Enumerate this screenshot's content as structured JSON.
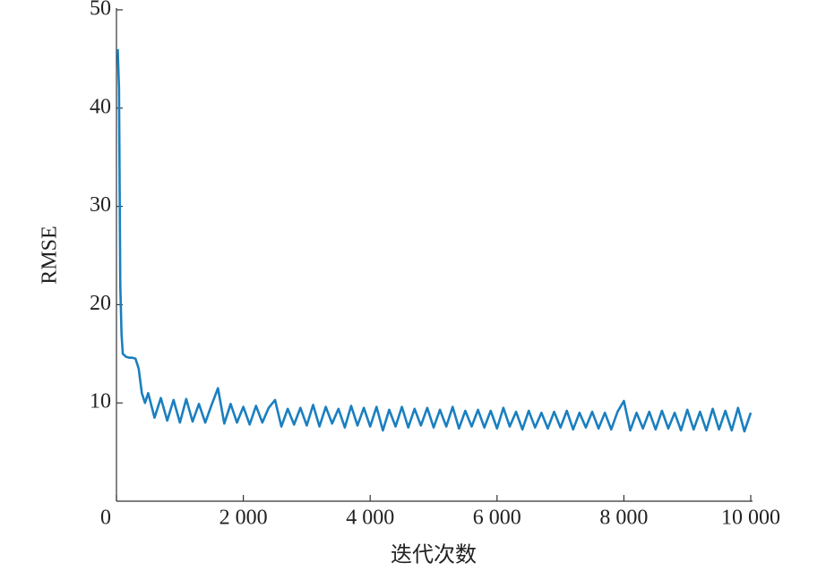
{
  "chart_data": {
    "type": "line",
    "xlabel": "迭代次数",
    "ylabel": "RMSE",
    "color": "#1a7fbf",
    "xlim": [
      0,
      10000
    ],
    "xticks": [
      0,
      {
        "value": 2000,
        "label": "2 000"
      },
      {
        "value": 4000,
        "label": "4 000"
      },
      {
        "value": 6000,
        "label": "6 000"
      },
      {
        "value": 8000,
        "label": "8 000"
      },
      {
        "value": 10000,
        "label": "10 000"
      }
    ],
    "ylim": [
      0,
      50
    ],
    "yticks": [
      10,
      20,
      30,
      40,
      50
    ],
    "x": [
      20,
      40,
      60,
      80,
      100,
      150,
      200,
      250,
      300,
      350,
      400,
      450,
      500,
      600,
      700,
      800,
      900,
      1000,
      1100,
      1200,
      1300,
      1400,
      1500,
      1600,
      1700,
      1800,
      1900,
      2000,
      2100,
      2200,
      2300,
      2400,
      2500,
      2600,
      2700,
      2800,
      2900,
      3000,
      3100,
      3200,
      3300,
      3400,
      3500,
      3600,
      3700,
      3800,
      3900,
      4000,
      4100,
      4200,
      4300,
      4400,
      4500,
      4600,
      4700,
      4800,
      4900,
      5000,
      5100,
      5200,
      5300,
      5400,
      5500,
      5600,
      5700,
      5800,
      5900,
      6000,
      6100,
      6200,
      6300,
      6400,
      6500,
      6600,
      6700,
      6800,
      6900,
      7000,
      7100,
      7200,
      7300,
      7400,
      7500,
      7600,
      7700,
      7800,
      7900,
      8000,
      8100,
      8200,
      8300,
      8400,
      8500,
      8600,
      8700,
      8800,
      8900,
      9000,
      9100,
      9200,
      9300,
      9400,
      9500,
      9600,
      9700,
      9800,
      9900,
      10000
    ],
    "values": [
      46,
      42,
      22,
      17,
      15,
      14.7,
      14.6,
      14.6,
      14.5,
      13.5,
      11,
      10,
      11,
      8.5,
      10.5,
      8.2,
      10.3,
      8.0,
      10.4,
      8.1,
      9.9,
      8.0,
      9.8,
      11.5,
      7.9,
      9.9,
      8.0,
      9.6,
      7.8,
      9.7,
      8.0,
      9.5,
      10.3,
      7.6,
      9.4,
      7.8,
      9.5,
      7.7,
      9.8,
      7.6,
      9.6,
      7.9,
      9.4,
      7.5,
      9.7,
      7.7,
      9.5,
      7.6,
      9.6,
      7.2,
      9.3,
      7.6,
      9.6,
      7.5,
      9.4,
      7.7,
      9.5,
      7.5,
      9.3,
      7.6,
      9.6,
      7.4,
      9.2,
      7.6,
      9.3,
      7.5,
      9.2,
      7.4,
      9.5,
      7.6,
      9.1,
      7.3,
      9.2,
      7.5,
      9.0,
      7.4,
      9.1,
      7.5,
      9.2,
      7.3,
      9.0,
      7.5,
      9.1,
      7.4,
      9.0,
      7.3,
      9.1,
      10.2,
      7.2,
      9.0,
      7.4,
      9.1,
      7.3,
      9.2,
      7.4,
      9.0,
      7.2,
      9.3,
      7.3,
      9.1,
      7.2,
      9.4,
      7.3,
      9.2,
      7.2,
      9.5,
      7.1,
      9.0
    ]
  }
}
